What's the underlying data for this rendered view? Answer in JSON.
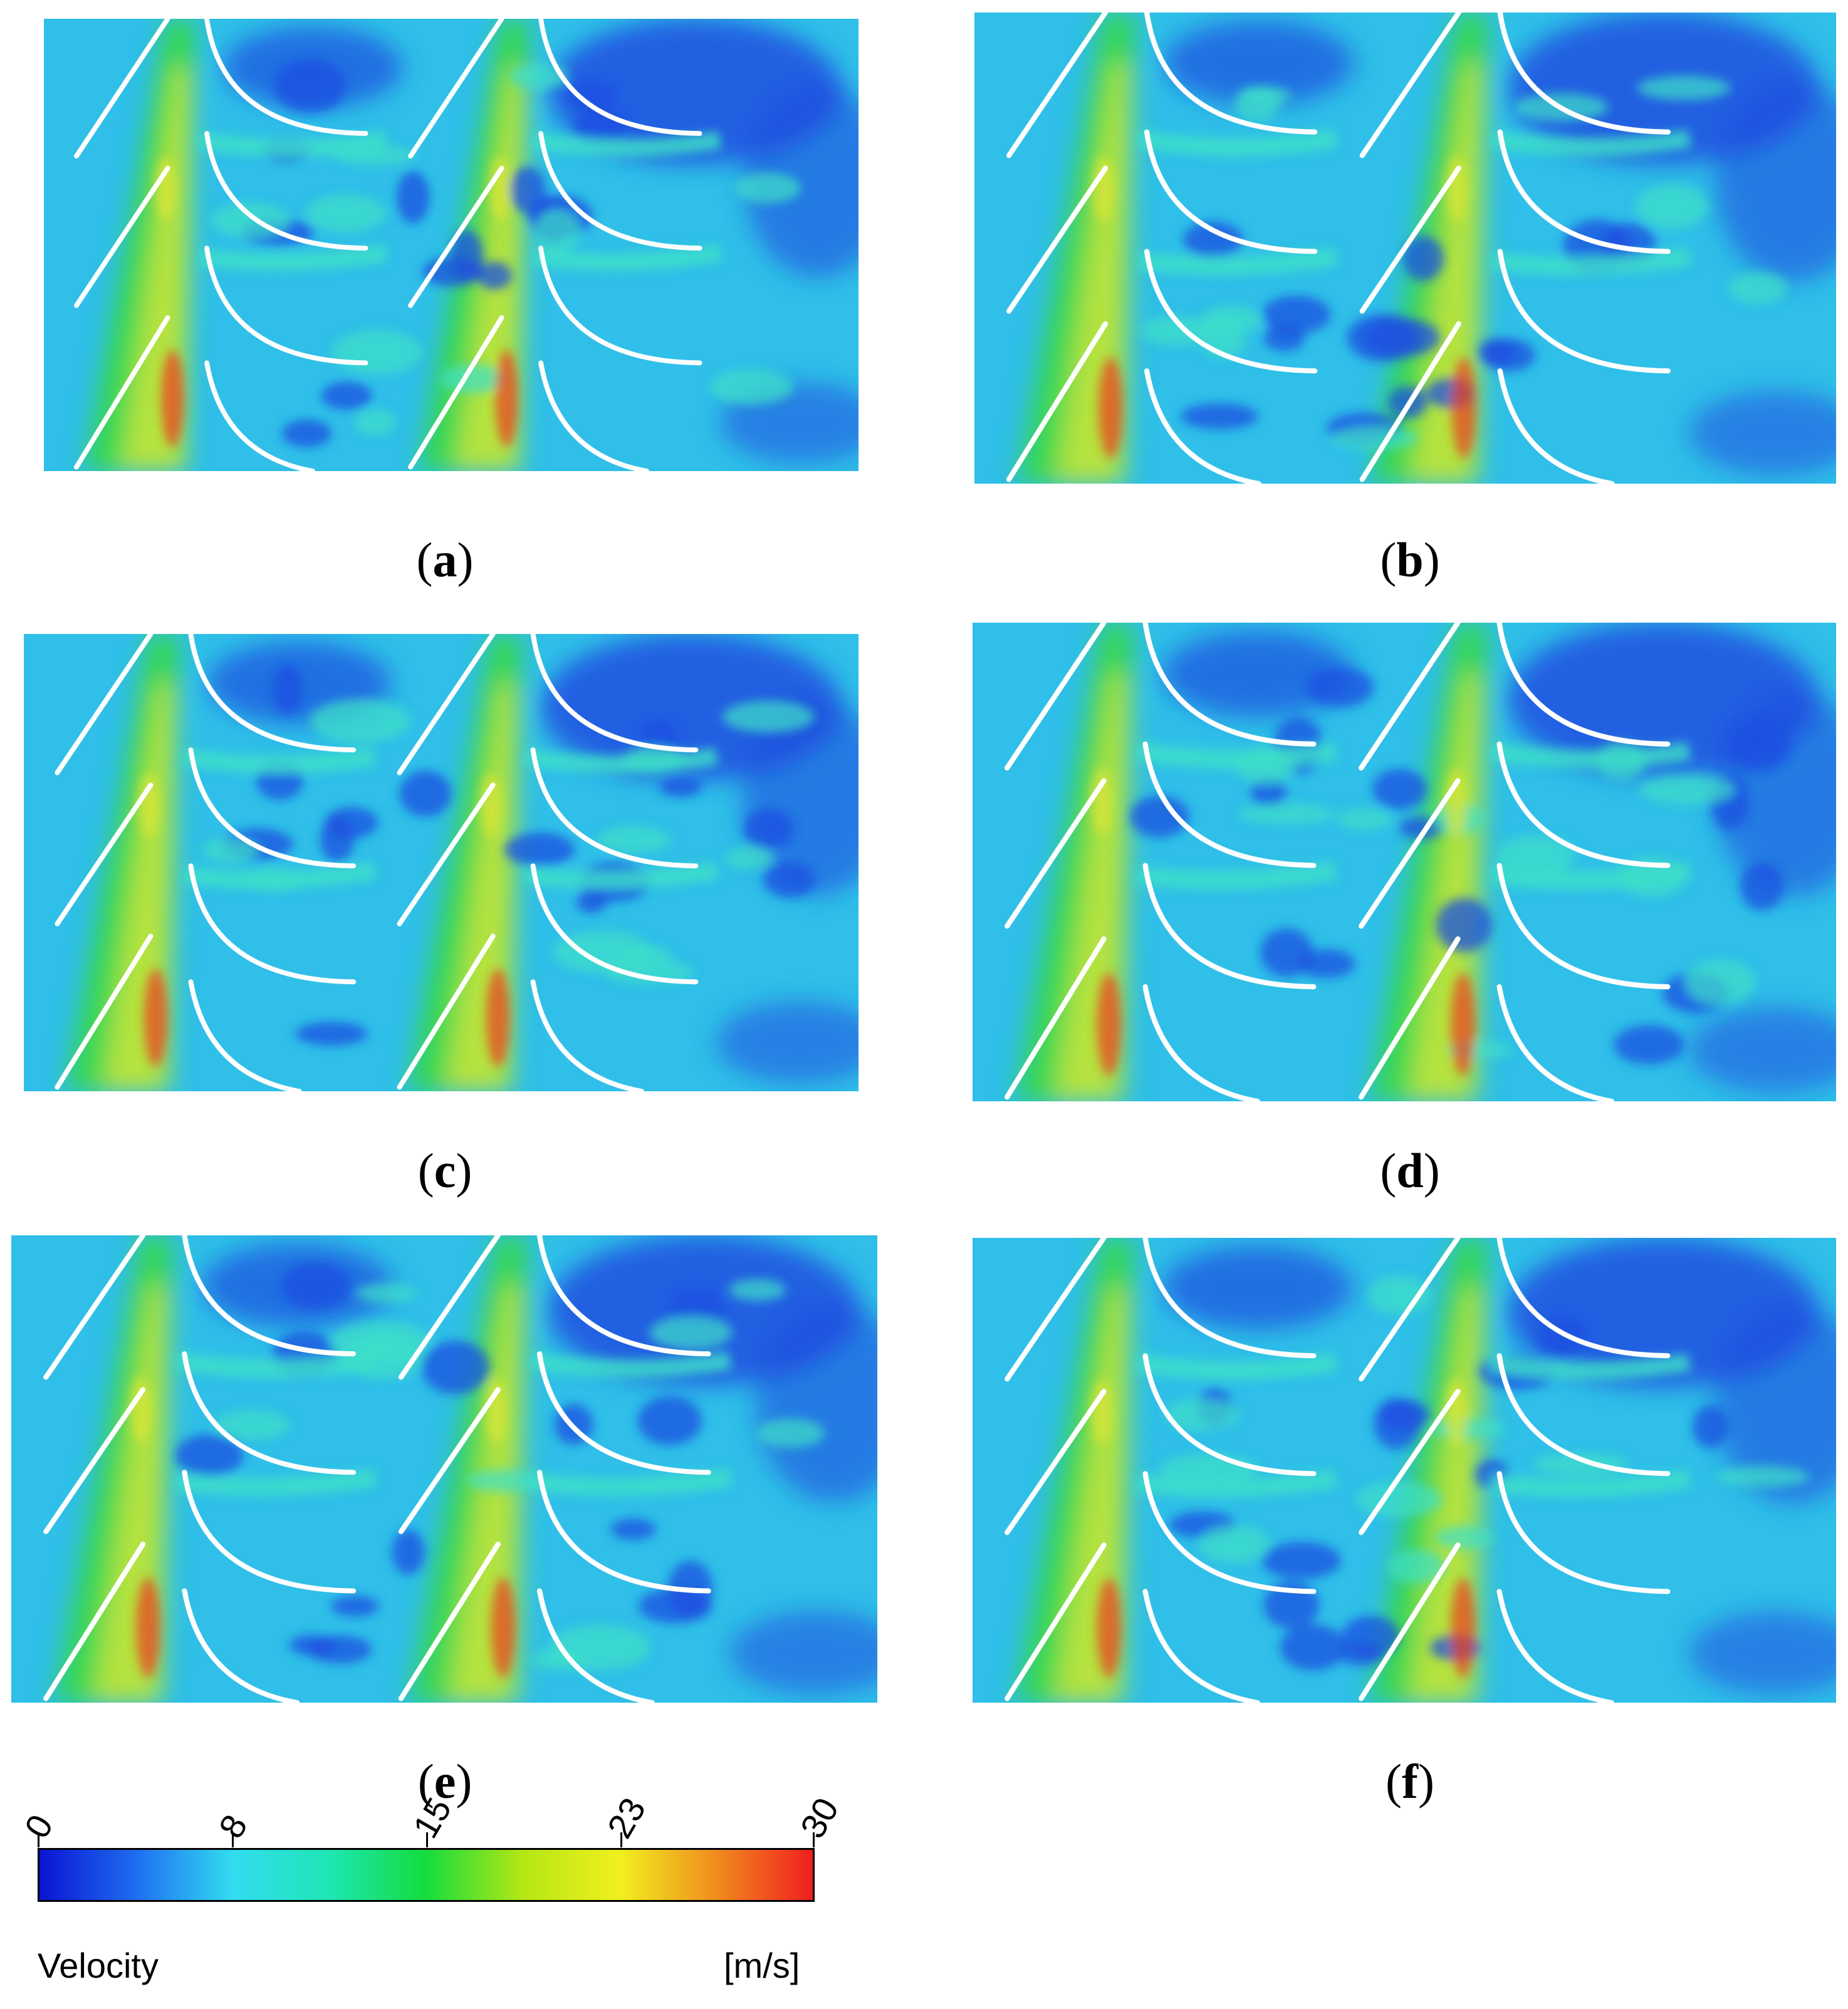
{
  "panels": [
    {
      "label": "a"
    },
    {
      "label": "b"
    },
    {
      "label": "c"
    },
    {
      "label": "d"
    },
    {
      "label": "e"
    },
    {
      "label": "f"
    }
  ],
  "colorbar": {
    "variable": "Velocity",
    "unit": "[m/s]",
    "min": 0,
    "max": 30,
    "tick_labels": [
      "0",
      "8",
      "15",
      "23",
      "30"
    ],
    "tick_values": [
      0,
      7.5,
      15,
      22.5,
      30
    ],
    "colors": [
      "#0a14d2",
      "#1e6ef0",
      "#32dcf0",
      "#1ee6b4",
      "#14dc3c",
      "#b4e614",
      "#f0f01e",
      "#f08c1e",
      "#f01e1e"
    ]
  },
  "colors": {
    "field_base": "#2fbfe8",
    "low_velocity": "#1d4fe0",
    "mid_velocity": "#3fe0c8",
    "high_green": "#35d84a",
    "high_yellow": "#d6e63a",
    "high_red": "#f03a1e",
    "blade": "#ffffff"
  }
}
